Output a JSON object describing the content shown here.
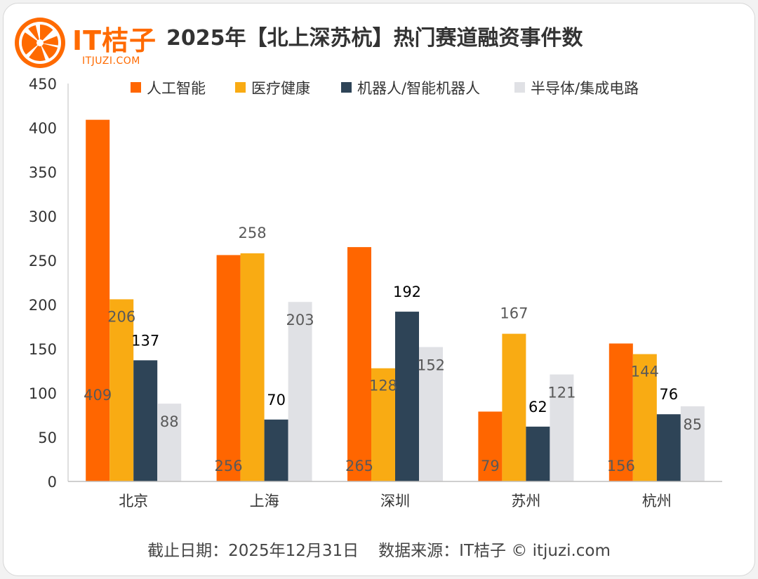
{
  "logo": {
    "name": "IT桔子",
    "url": "ITJUZI.COM"
  },
  "title": "2025年【北上深苏杭】热门赛道融资事件数",
  "footer": {
    "date": "截止日期：2025年12月31日",
    "source": "数据来源：IT桔子 © itjuzi.com"
  },
  "colors": {
    "accent": "#ff6a00"
  },
  "chart_data": {
    "type": "bar",
    "title": "2025年【北上深苏杭】热门赛道融资事件数",
    "xlabel": "",
    "ylabel": "",
    "ylim": [
      0,
      450
    ],
    "yticks": [
      0,
      50,
      100,
      150,
      200,
      250,
      300,
      350,
      400,
      450
    ],
    "grid": false,
    "legend_position": "top",
    "categories": [
      "北京",
      "上海",
      "深圳",
      "苏州",
      "杭州"
    ],
    "series": [
      {
        "name": "人工智能",
        "color": "#ff6600",
        "label_color": "#595959",
        "values": [
          409,
          256,
          265,
          79,
          156
        ]
      },
      {
        "name": "医疗健康",
        "color": "#f9ab13",
        "label_color": "#595959",
        "values": [
          206,
          258,
          128,
          167,
          144
        ]
      },
      {
        "name": "机器人/智能机器人",
        "color": "#2e4457",
        "label_color": "#000000",
        "values": [
          137,
          70,
          192,
          62,
          76
        ]
      },
      {
        "name": "半导体/集成电路",
        "color": "#e0e1e5",
        "label_color": "#595959",
        "values": [
          88,
          203,
          152,
          121,
          85
        ]
      }
    ]
  }
}
